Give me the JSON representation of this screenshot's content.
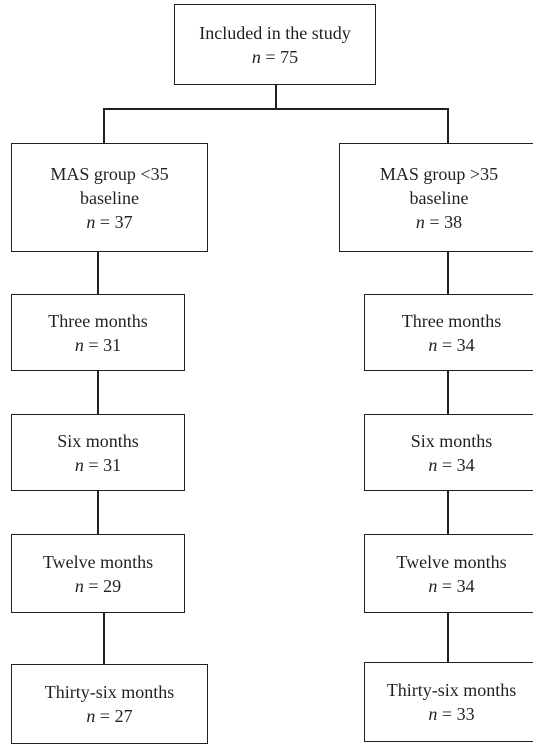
{
  "top": {
    "label": "Included in the study",
    "n_symbol": "n",
    "n_value": "= 75"
  },
  "left_column": [
    {
      "label_lines": [
        "MAS group <35",
        "baseline"
      ],
      "n_symbol": "n",
      "n_value": "= 37"
    },
    {
      "label_lines": [
        "Three months"
      ],
      "n_symbol": "n",
      "n_value": "= 31"
    },
    {
      "label_lines": [
        "Six months"
      ],
      "n_symbol": "n",
      "n_value": "= 31"
    },
    {
      "label_lines": [
        "Twelve months"
      ],
      "n_symbol": "n",
      "n_value": "= 29"
    },
    {
      "label_lines": [
        "Thirty-six months"
      ],
      "n_symbol": "n",
      "n_value": "= 27"
    }
  ],
  "right_column": [
    {
      "label_lines": [
        "MAS group >35",
        "baseline"
      ],
      "n_symbol": "n",
      "n_value": "= 38"
    },
    {
      "label_lines": [
        "Three months"
      ],
      "n_symbol": "n",
      "n_value": "= 34"
    },
    {
      "label_lines": [
        "Six months"
      ],
      "n_symbol": "n",
      "n_value": "= 34"
    },
    {
      "label_lines": [
        "Twelve months"
      ],
      "n_symbol": "n",
      "n_value": "= 34"
    },
    {
      "label_lines": [
        "Thirty-six months"
      ],
      "n_symbol": "n",
      "n_value": "= 33"
    }
  ]
}
